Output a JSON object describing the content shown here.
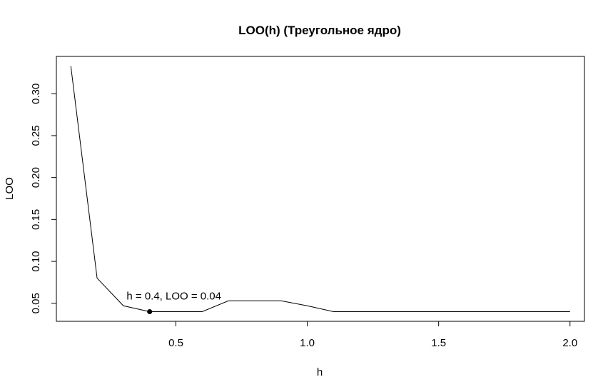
{
  "chart_data": {
    "type": "line",
    "title": "LOO(h) (Треугольное ядро)",
    "xlabel": "h",
    "ylabel": "LOO",
    "x": [
      0.1,
      0.2,
      0.3,
      0.4,
      0.5,
      0.6,
      0.7,
      0.8,
      0.9,
      1.0,
      1.1,
      1.2,
      1.3,
      1.4,
      1.5,
      1.6,
      1.7,
      1.8,
      1.9,
      2.0
    ],
    "series": [
      {
        "values": [
          0.333,
          0.08,
          0.047,
          0.04,
          0.04,
          0.04,
          0.053,
          0.053,
          0.053,
          0.047,
          0.04,
          0.04,
          0.04,
          0.04,
          0.04,
          0.04,
          0.04,
          0.04,
          0.04,
          0.04
        ]
      }
    ],
    "xlim": [
      0.045,
      2.055
    ],
    "ylim": [
      0.0285,
      0.3445
    ],
    "xticks": [
      0.5,
      1.0,
      1.5,
      2.0
    ],
    "xtick_labels": [
      "0.5",
      "1.0",
      "1.5",
      "2.0"
    ],
    "yticks": [
      0.05,
      0.1,
      0.15,
      0.2,
      0.25,
      0.3
    ],
    "ytick_labels": [
      "0.05",
      "0.10",
      "0.15",
      "0.20",
      "0.25",
      "0.30"
    ],
    "highlight_point": {
      "x": 0.4,
      "y": 0.04
    },
    "annotation": "h = 0.4, LOO = 0.04",
    "grid": false,
    "line_color": "#000000"
  }
}
